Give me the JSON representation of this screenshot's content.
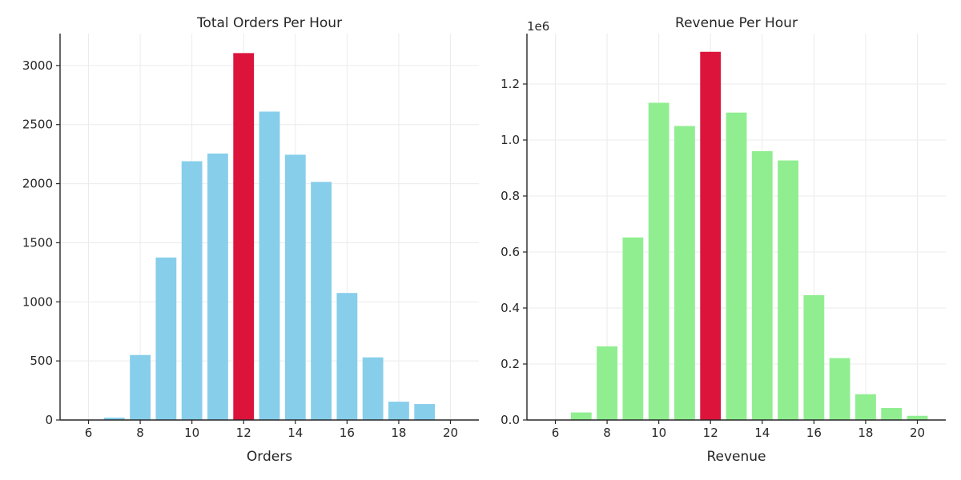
{
  "chart_data": [
    {
      "type": "bar",
      "title": "Total Orders Per Hour",
      "xlabel": "Orders",
      "ylabel": "",
      "x": [
        6,
        7,
        8,
        9,
        10,
        11,
        12,
        13,
        14,
        15,
        16,
        17,
        18,
        19,
        20
      ],
      "values": [
        2,
        20,
        550,
        1375,
        2190,
        2255,
        3105,
        2610,
        2245,
        2015,
        1075,
        530,
        155,
        135,
        0
      ],
      "highlight_x": 12,
      "bar_color": "#87ceeb",
      "highlight_color": "#dc143c",
      "xlim": [
        4.9,
        21.1
      ],
      "ylim": [
        0,
        3270
      ],
      "xticks": [
        6,
        8,
        10,
        12,
        14,
        16,
        18,
        20
      ],
      "xtick_labels": [
        "6",
        "8",
        "10",
        "12",
        "14",
        "16",
        "18",
        "20"
      ],
      "yticks": [
        0,
        500,
        1000,
        1500,
        2000,
        2500,
        3000
      ],
      "ytick_labels": [
        "0",
        "500",
        "1000",
        "1500",
        "2000",
        "2500",
        "3000"
      ],
      "offset_text": "",
      "grid": true
    },
    {
      "type": "bar",
      "title": "Revenue Per Hour",
      "xlabel": "Revenue",
      "ylabel": "",
      "x": [
        6,
        7,
        8,
        9,
        10,
        11,
        12,
        13,
        14,
        15,
        16,
        17,
        18,
        19,
        20
      ],
      "values": [
        1000,
        27000,
        263000,
        652000,
        1133000,
        1050000,
        1315000,
        1098000,
        960000,
        927000,
        446000,
        221000,
        92000,
        43000,
        15000
      ],
      "highlight_x": 12,
      "bar_color": "#90ee90",
      "highlight_color": "#dc143c",
      "xlim": [
        4.9,
        21.1
      ],
      "ylim": [
        0,
        1380000
      ],
      "xticks": [
        6,
        8,
        10,
        12,
        14,
        16,
        18,
        20
      ],
      "xtick_labels": [
        "6",
        "8",
        "10",
        "12",
        "14",
        "16",
        "18",
        "20"
      ],
      "yticks": [
        0,
        200000,
        400000,
        600000,
        800000,
        1000000,
        1200000
      ],
      "ytick_labels": [
        "0.0",
        "0.2",
        "0.4",
        "0.6",
        "0.8",
        "1.0",
        "1.2"
      ],
      "offset_text": "1e6",
      "grid": true
    }
  ]
}
